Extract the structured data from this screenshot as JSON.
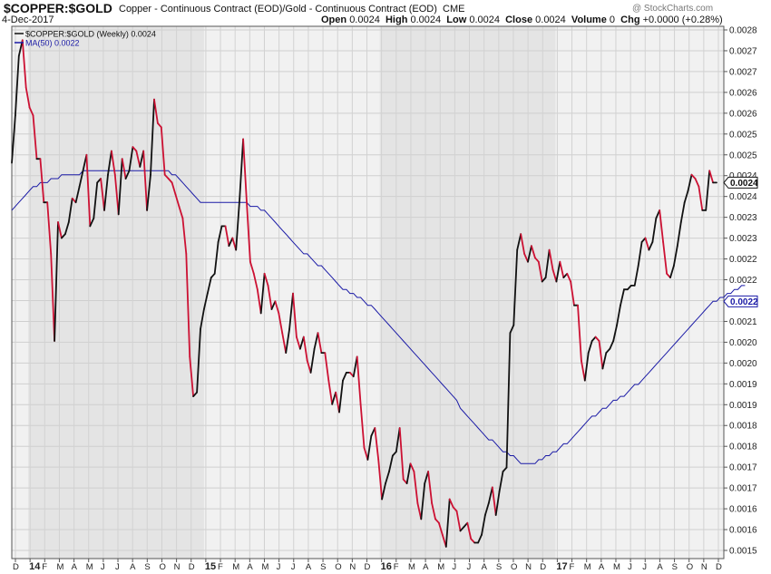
{
  "header": {
    "symbol": "$COPPER:$GOLD",
    "description": "Copper - Continuous Contract (EOD)/Gold - Continuous Contract (EOD)",
    "exchange": "CME",
    "date": "4-Dec-2017",
    "credit": "@ StockCharts.com",
    "ohlc": {
      "open_label": "Open",
      "open": "0.0024",
      "high_label": "High",
      "high": "0.0024",
      "low_label": "Low",
      "low": "0.0024",
      "close_label": "Close",
      "close": "0.0024",
      "volume_label": "Volume",
      "volume": "0",
      "chg_label": "Chg",
      "chg": "+0.0000 (+0.28%)"
    }
  },
  "legend": [
    {
      "label": "$COPPER:$GOLD (Weekly) 0.0024",
      "color": "#111111"
    },
    {
      "label": "MA(50) 0.0022",
      "color": "#1a1aa6"
    }
  ],
  "chart_data": {
    "type": "line",
    "title": "$COPPER:$GOLD",
    "x_tick_labels": [
      "D",
      "14",
      "F",
      "M",
      "A",
      "M",
      "J",
      "J",
      "A",
      "S",
      "O",
      "N",
      "D",
      "15",
      "F",
      "M",
      "A",
      "M",
      "J",
      "J",
      "A",
      "S",
      "O",
      "N",
      "D",
      "16",
      "F",
      "M",
      "A",
      "M",
      "J",
      "J",
      "A",
      "S",
      "O",
      "N",
      "D",
      "17",
      "F",
      "M",
      "A",
      "M",
      "J",
      "J",
      "A",
      "S",
      "O",
      "N",
      "D"
    ],
    "x_tick_bold": [
      "14",
      "15",
      "16",
      "17"
    ],
    "y_tick_labels": [
      "0.0015",
      "0.0016",
      "0.0016",
      "0.0017",
      "0.0017",
      "0.0018",
      "0.0018",
      "0.0019",
      "0.0019",
      "0.0020",
      "0.0020",
      "0.0021",
      "0.0021",
      "0.0022",
      "0.0022",
      "0.0023",
      "0.0023",
      "0.0024",
      "0.0024",
      "0.0025",
      "0.0025",
      "0.0026",
      "0.0026",
      "0.0027",
      "0.0027",
      "0.0028"
    ],
    "y_range": [
      0.00148,
      0.002825
    ],
    "grid": true,
    "shaded_years": [
      "2014",
      "2016"
    ],
    "last_value_label": "0.0024",
    "ma_last_label": "0.0022",
    "up_color": "#111111",
    "down_color": "#cc1133",
    "ma_color": "#1a1aa6",
    "series": [
      {
        "name": "$COPPER:$GOLD (Weekly)",
        "values": [
          0.00248,
          0.0026,
          0.00275,
          0.00279,
          0.00267,
          0.00262,
          0.0026,
          0.00249,
          0.00249,
          0.00238,
          0.00238,
          0.00225,
          0.00203,
          0.00233,
          0.00229,
          0.0023,
          0.00233,
          0.00239,
          0.00238,
          0.00242,
          0.00246,
          0.0025,
          0.00232,
          0.00234,
          0.00243,
          0.00244,
          0.00236,
          0.00245,
          0.00251,
          0.00245,
          0.00235,
          0.00249,
          0.00244,
          0.00246,
          0.00252,
          0.00251,
          0.00247,
          0.00251,
          0.00236,
          0.00245,
          0.00264,
          0.00258,
          0.00257,
          0.00245,
          0.00244,
          0.00243,
          0.0024,
          0.00237,
          0.00234,
          0.00225,
          0.00199,
          0.00189,
          0.0019,
          0.00206,
          0.00211,
          0.00215,
          0.00219,
          0.0022,
          0.00228,
          0.00232,
          0.00232,
          0.00227,
          0.00229,
          0.00226,
          0.00239,
          0.00254,
          0.00238,
          0.00223,
          0.0022,
          0.00216,
          0.0021,
          0.0022,
          0.00217,
          0.00211,
          0.00213,
          0.0021,
          0.00205,
          0.002,
          0.00206,
          0.00215,
          0.00204,
          0.00201,
          0.00204,
          0.00198,
          0.00195,
          0.00201,
          0.00205,
          0.002,
          0.002,
          0.00193,
          0.00187,
          0.0019,
          0.00185,
          0.00193,
          0.00195,
          0.00195,
          0.00194,
          0.00199,
          0.00187,
          0.00176,
          0.00173,
          0.00179,
          0.00181,
          0.00173,
          0.00163,
          0.00167,
          0.0017,
          0.00174,
          0.00175,
          0.00181,
          0.00168,
          0.00167,
          0.00172,
          0.0017,
          0.00162,
          0.00158,
          0.00167,
          0.0017,
          0.00162,
          0.00158,
          0.00157,
          0.00154,
          0.00151,
          0.00163,
          0.00161,
          0.0016,
          0.00155,
          0.00156,
          0.00157,
          0.00153,
          0.00152,
          0.00152,
          0.00154,
          0.00159,
          0.00162,
          0.00166,
          0.00159,
          0.00165,
          0.0017,
          0.00171,
          0.00205,
          0.00207,
          0.00226,
          0.0023,
          0.00225,
          0.00223,
          0.00227,
          0.00224,
          0.00223,
          0.00218,
          0.00219,
          0.00226,
          0.00221,
          0.00218,
          0.00223,
          0.00219,
          0.0022,
          0.00218,
          0.00212,
          0.00212,
          0.00198,
          0.00193,
          0.002,
          0.00203,
          0.00204,
          0.00203,
          0.00196,
          0.002,
          0.00201,
          0.00203,
          0.00207,
          0.00212,
          0.00216,
          0.00216,
          0.00217,
          0.00217,
          0.00222,
          0.00228,
          0.00229,
          0.00226,
          0.00228,
          0.00234,
          0.00236,
          0.00228,
          0.0022,
          0.00219,
          0.00222,
          0.00227,
          0.00233,
          0.00238,
          0.00241,
          0.00245,
          0.00244,
          0.00242,
          0.00236,
          0.00236,
          0.00246,
          0.00243,
          0.00243
        ]
      },
      {
        "name": "MA(50)",
        "values": [
          0.00236,
          0.00237,
          0.00238,
          0.00239,
          0.0024,
          0.00241,
          0.00242,
          0.00242,
          0.00243,
          0.00243,
          0.00243,
          0.00244,
          0.00244,
          0.00244,
          0.00245,
          0.00245,
          0.00245,
          0.00245,
          0.00245,
          0.00245,
          0.00246,
          0.00246,
          0.00246,
          0.00246,
          0.00246,
          0.00246,
          0.00246,
          0.00246,
          0.00246,
          0.00246,
          0.00246,
          0.00246,
          0.00246,
          0.00246,
          0.00246,
          0.00246,
          0.00246,
          0.00246,
          0.00246,
          0.00246,
          0.00246,
          0.00246,
          0.00246,
          0.00246,
          0.00246,
          0.00245,
          0.00245,
          0.00244,
          0.00243,
          0.00242,
          0.00241,
          0.0024,
          0.00239,
          0.00238,
          0.00238,
          0.00238,
          0.00238,
          0.00238,
          0.00238,
          0.00238,
          0.00238,
          0.00238,
          0.00238,
          0.00238,
          0.00238,
          0.00238,
          0.00238,
          0.00237,
          0.00237,
          0.00237,
          0.00236,
          0.00236,
          0.00235,
          0.00234,
          0.00233,
          0.00232,
          0.00231,
          0.0023,
          0.00229,
          0.00228,
          0.00227,
          0.00226,
          0.00225,
          0.00225,
          0.00224,
          0.00223,
          0.00222,
          0.00222,
          0.00221,
          0.0022,
          0.00219,
          0.00218,
          0.00217,
          0.00216,
          0.00216,
          0.00215,
          0.00215,
          0.00214,
          0.00214,
          0.00213,
          0.00212,
          0.00212,
          0.00211,
          0.0021,
          0.00209,
          0.00208,
          0.00207,
          0.00206,
          0.00205,
          0.00204,
          0.00203,
          0.00202,
          0.00201,
          0.002,
          0.00199,
          0.00198,
          0.00197,
          0.00196,
          0.00195,
          0.00194,
          0.00193,
          0.00192,
          0.00191,
          0.0019,
          0.00189,
          0.00188,
          0.00186,
          0.00185,
          0.00184,
          0.00183,
          0.00182,
          0.00181,
          0.0018,
          0.00179,
          0.00178,
          0.00178,
          0.00177,
          0.00176,
          0.00175,
          0.00175,
          0.00174,
          0.00174,
          0.00173,
          0.00172,
          0.00172,
          0.00172,
          0.00172,
          0.00172,
          0.00173,
          0.00173,
          0.00174,
          0.00174,
          0.00175,
          0.00175,
          0.00176,
          0.00177,
          0.00177,
          0.00178,
          0.00179,
          0.0018,
          0.00181,
          0.00182,
          0.00183,
          0.00184,
          0.00184,
          0.00185,
          0.00186,
          0.00186,
          0.00187,
          0.00188,
          0.00188,
          0.00189,
          0.00189,
          0.0019,
          0.00191,
          0.00192,
          0.00192,
          0.00193,
          0.00194,
          0.00195,
          0.00196,
          0.00197,
          0.00198,
          0.00199,
          0.002,
          0.00201,
          0.00202,
          0.00203,
          0.00204,
          0.00205,
          0.00206,
          0.00207,
          0.00208,
          0.00209,
          0.0021,
          0.00211,
          0.00212,
          0.00213,
          0.00213,
          0.00214,
          0.00214,
          0.00215,
          0.00215,
          0.00216,
          0.00216,
          0.00217,
          0.00217
        ]
      }
    ]
  }
}
